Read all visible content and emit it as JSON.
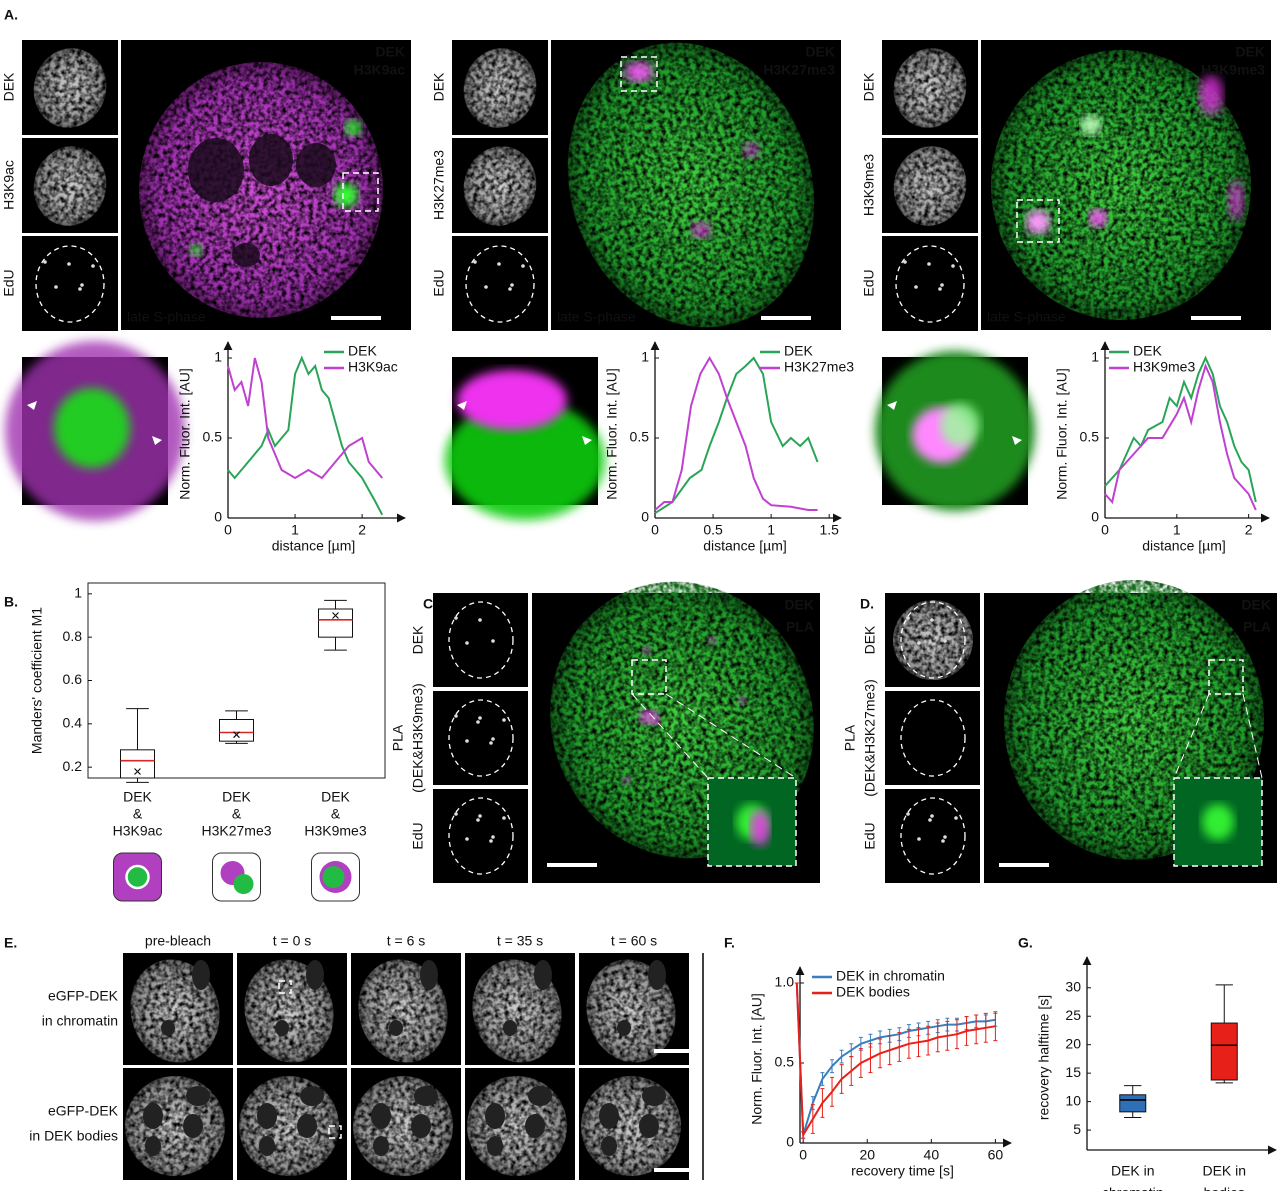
{
  "panel_labels": {
    "a": "A.",
    "b": "B.",
    "c": "C.",
    "d": "D.",
    "e": "E.",
    "f": "F.",
    "g": "G."
  },
  "panel_a": [
    {
      "channels": [
        "DEK",
        "H3K9ac",
        "EdU"
      ],
      "overlay": [
        "DEK",
        "H3K9ac"
      ],
      "phase": "late S-phase"
    },
    {
      "channels": [
        "DEK",
        "H3K27me3",
        "EdU"
      ],
      "overlay": [
        "DEK",
        "H3K27me3"
      ],
      "phase": "late S-phase"
    },
    {
      "channels": [
        "DEK",
        "H3K9me3",
        "EdU"
      ],
      "overlay": [
        "DEK",
        "H3K9me3"
      ],
      "phase": "late S-phase"
    }
  ],
  "panel_c": {
    "channels": [
      [
        "DEK"
      ],
      [
        "PLA",
        "(DEK&H3K9me3)"
      ],
      [
        "EdU"
      ]
    ],
    "overlay": [
      "DEK",
      "PLA"
    ]
  },
  "panel_d": {
    "channels": [
      [
        "DEK"
      ],
      [
        "PLA",
        "(DEK&H3K27me3)"
      ],
      [
        "EdU"
      ]
    ],
    "overlay": [
      "DEK",
      "PLA"
    ]
  },
  "panel_e": {
    "timepoints": [
      "pre-bleach",
      "t = 0 s",
      "t = 6 s",
      "t = 35 s",
      "t = 60 s"
    ],
    "rows": [
      [
        "eGFP-DEK",
        "in chromatin"
      ],
      [
        "eGFP-DEK",
        "in DEK bodies"
      ]
    ]
  },
  "chart_data": [
    {
      "type": "line",
      "axis_style": "arrows",
      "x_label": "distance [µm]",
      "y_label": "Norm. Fluor. Int. [AU]",
      "xlim": [
        0,
        2.55
      ],
      "xticks": [
        0,
        1,
        2
      ],
      "ylim": [
        0,
        1.05
      ],
      "yticks": [
        0,
        0.5,
        1
      ],
      "legend": "upper right",
      "series": [
        {
          "name": "DEK",
          "color": "#2aa558",
          "x": [
            0,
            0.1,
            0.3,
            0.5,
            0.6,
            0.7,
            0.9,
            1.0,
            1.1,
            1.2,
            1.3,
            1.4,
            1.5,
            1.6,
            1.7,
            1.8,
            2.0,
            2.2,
            2.3
          ],
          "values": [
            0.3,
            0.25,
            0.35,
            0.45,
            0.55,
            0.45,
            0.55,
            0.9,
            1.0,
            0.9,
            0.95,
            0.8,
            0.75,
            0.6,
            0.45,
            0.35,
            0.25,
            0.1,
            0.02
          ]
        },
        {
          "name": "H3K9ac",
          "color": "#c040d0",
          "x": [
            0,
            0.1,
            0.2,
            0.3,
            0.4,
            0.5,
            0.6,
            0.7,
            0.8,
            1.0,
            1.2,
            1.4,
            1.6,
            1.8,
            2.0,
            2.1,
            2.2,
            2.3
          ],
          "values": [
            0.95,
            0.8,
            0.85,
            0.7,
            1.0,
            0.85,
            0.5,
            0.4,
            0.3,
            0.25,
            0.3,
            0.25,
            0.35,
            0.45,
            0.5,
            0.35,
            0.3,
            0.25
          ]
        }
      ]
    },
    {
      "type": "line",
      "axis_style": "arrows",
      "x_label": "distance [µm]",
      "y_label": "Norm. Fluor. Int. [AU]",
      "xlim": [
        0,
        1.55
      ],
      "xticks": [
        0,
        0.5,
        1,
        1.5
      ],
      "ylim": [
        0,
        1.05
      ],
      "yticks": [
        0,
        0.5,
        1
      ],
      "legend": "upper right",
      "series": [
        {
          "name": "DEK",
          "color": "#2aa558",
          "x": [
            0,
            0.15,
            0.3,
            0.4,
            0.47,
            0.55,
            0.62,
            0.7,
            0.78,
            0.85,
            0.93,
            1.0,
            1.1,
            1.17,
            1.25,
            1.32,
            1.4
          ],
          "values": [
            0.03,
            0.1,
            0.25,
            0.3,
            0.45,
            0.6,
            0.75,
            0.9,
            0.95,
            1.0,
            0.9,
            0.6,
            0.45,
            0.5,
            0.45,
            0.5,
            0.35
          ]
        },
        {
          "name": "H3K27me3",
          "color": "#c040d0",
          "x": [
            0,
            0.08,
            0.15,
            0.23,
            0.31,
            0.39,
            0.47,
            0.55,
            0.62,
            0.7,
            0.78,
            0.85,
            0.93,
            1.0,
            1.17,
            1.32,
            1.4
          ],
          "values": [
            0.05,
            0.1,
            0.1,
            0.3,
            0.7,
            0.9,
            1.0,
            0.9,
            0.75,
            0.6,
            0.45,
            0.25,
            0.12,
            0.08,
            0.07,
            0.05,
            0.05
          ]
        }
      ]
    },
    {
      "type": "line",
      "axis_style": "arrows",
      "x_label": "distance [µm]",
      "y_label": "Norm. Fluor. Int. [AU]",
      "xlim": [
        0,
        2.2
      ],
      "xticks": [
        0,
        1,
        2
      ],
      "ylim": [
        0,
        1.05
      ],
      "yticks": [
        0,
        0.5,
        1
      ],
      "legend": "upper left",
      "series": [
        {
          "name": "DEK",
          "color": "#2aa558",
          "x": [
            0,
            0.2,
            0.4,
            0.5,
            0.6,
            0.8,
            0.9,
            1.0,
            1.1,
            1.2,
            1.3,
            1.4,
            1.5,
            1.6,
            1.7,
            1.8,
            1.9,
            2.0,
            2.1
          ],
          "values": [
            0.2,
            0.3,
            0.5,
            0.45,
            0.55,
            0.6,
            0.75,
            0.7,
            0.85,
            0.75,
            0.9,
            1.0,
            0.9,
            0.7,
            0.6,
            0.45,
            0.35,
            0.3,
            0.1
          ]
        },
        {
          "name": "H3K9me3",
          "color": "#c040d0",
          "x": [
            0,
            0.1,
            0.2,
            0.4,
            0.6,
            0.8,
            1.0,
            1.1,
            1.2,
            1.3,
            1.4,
            1.5,
            1.6,
            1.7,
            1.8,
            1.9,
            2.0,
            2.1
          ],
          "values": [
            0.15,
            0.1,
            0.3,
            0.4,
            0.5,
            0.5,
            0.65,
            0.75,
            0.6,
            0.8,
            0.95,
            0.85,
            0.6,
            0.4,
            0.25,
            0.2,
            0.15,
            0.05
          ]
        }
      ]
    },
    {
      "type": "box",
      "axis_style": "box",
      "y_label": "Manders' coefficient M1",
      "categories": [
        [
          "DEK",
          "&",
          "H3K9ac"
        ],
        [
          "DEK",
          "&",
          "H3K27me3"
        ],
        [
          "DEK",
          "&",
          "H3K9me3"
        ]
      ],
      "ylim": [
        0.15,
        1.05
      ],
      "yticks": [
        0.2,
        0.4,
        0.6,
        0.8,
        1
      ],
      "colors": [
        "#ffffff",
        "#ffffff",
        "#ffffff"
      ],
      "median_color": "#d62728",
      "boxes": [
        {
          "whislo": 0.13,
          "q1": 0.15,
          "med": 0.23,
          "q3": 0.28,
          "whishi": 0.47,
          "mean": 0.18
        },
        {
          "whislo": 0.31,
          "q1": 0.32,
          "med": 0.36,
          "q3": 0.42,
          "whishi": 0.46,
          "mean": 0.35
        },
        {
          "whislo": 0.74,
          "q1": 0.8,
          "med": 0.88,
          "q3": 0.93,
          "whishi": 0.97,
          "mean": 0.9
        }
      ]
    },
    {
      "type": "line",
      "axis_style": "arrows",
      "x_label": "recovery time [s]",
      "y_label": "Norm. Fluor. Int. [AU]",
      "xlim": [
        -1,
        63
      ],
      "xticks": [
        0,
        20,
        40,
        60
      ],
      "ylim": [
        0,
        1.05
      ],
      "yticks": [
        0,
        0.5,
        {
          "value": 1,
          "label": "1.0"
        }
      ],
      "legend": "upper left",
      "series": [
        {
          "name": "DEK in chromatin",
          "color": "#3a7ebf",
          "x": [
            -2,
            0,
            3,
            6,
            9,
            12,
            15,
            18,
            21,
            24,
            27,
            30,
            33,
            36,
            39,
            42,
            45,
            48,
            51,
            54,
            57,
            60
          ],
          "values": [
            1.0,
            0.05,
            0.25,
            0.4,
            0.48,
            0.54,
            0.58,
            0.62,
            0.64,
            0.66,
            0.67,
            0.68,
            0.7,
            0.71,
            0.72,
            0.73,
            0.74,
            0.74,
            0.75,
            0.76,
            0.76,
            0.77
          ],
          "errors": [
            0,
            0.02,
            0.04,
            0.04,
            0.04,
            0.04,
            0.04,
            0.04,
            0.04,
            0.04,
            0.04,
            0.04,
            0.04,
            0.04,
            0.04,
            0.04,
            0.04,
            0.04,
            0.04,
            0.04,
            0.04,
            0.04
          ]
        },
        {
          "name": "DEK bodies",
          "color": "#e8201a",
          "x": [
            -2,
            0,
            3,
            6,
            9,
            12,
            15,
            18,
            21,
            24,
            27,
            30,
            33,
            36,
            39,
            42,
            45,
            48,
            51,
            54,
            57,
            60
          ],
          "values": [
            1.0,
            0.05,
            0.15,
            0.25,
            0.32,
            0.4,
            0.45,
            0.5,
            0.53,
            0.56,
            0.58,
            0.6,
            0.62,
            0.63,
            0.64,
            0.66,
            0.67,
            0.68,
            0.7,
            0.71,
            0.72,
            0.73
          ],
          "errors": [
            0,
            0.02,
            0.09,
            0.09,
            0.09,
            0.09,
            0.09,
            0.09,
            0.09,
            0.09,
            0.09,
            0.09,
            0.09,
            0.09,
            0.09,
            0.09,
            0.09,
            0.09,
            0.09,
            0.09,
            0.09,
            0.09
          ]
        }
      ]
    },
    {
      "type": "box",
      "axis_style": "arrows",
      "y_label": "recovery halftime [s]",
      "categories": [
        [
          "DEK in",
          "chromatin"
        ],
        [
          "DEK in",
          "bodies"
        ]
      ],
      "ylim": [
        1.5,
        34
      ],
      "yticks": [
        5,
        10,
        15,
        20,
        25,
        30
      ],
      "colors": [
        "#2f6fb5",
        "#e8201a"
      ],
      "median_color": "#000000",
      "boxes": [
        {
          "whislo": 7.2,
          "q1": 8.2,
          "med": 10.3,
          "q3": 11.2,
          "whishi": 12.8
        },
        {
          "whislo": 13.3,
          "q1": 13.8,
          "med": 19.9,
          "q3": 23.8,
          "whishi": 30.5
        }
      ]
    }
  ]
}
